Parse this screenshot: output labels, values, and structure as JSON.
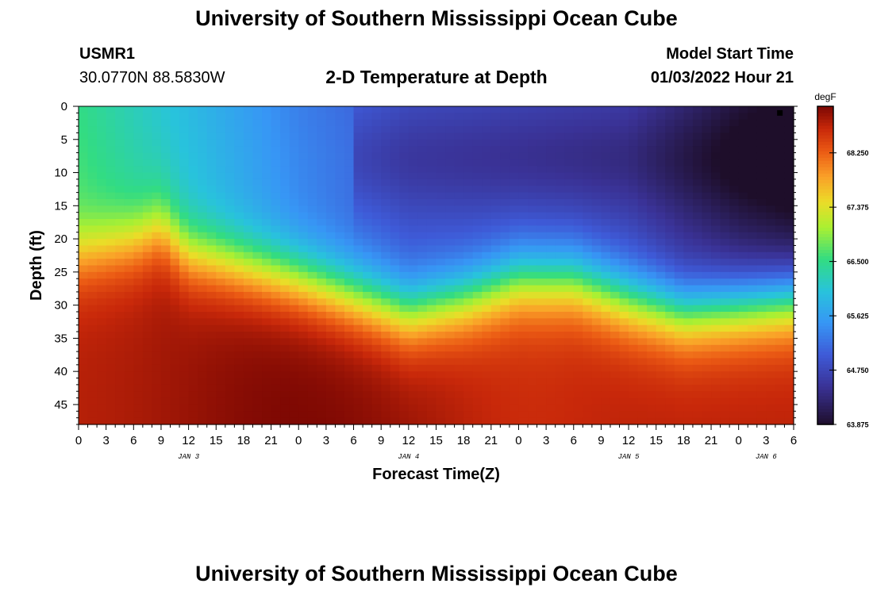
{
  "page": {
    "title": "University of Southern Mississippi Ocean Cube",
    "footer_title": "University of Southern Mississippi Ocean Cube",
    "station": "USMR1",
    "coords": "30.0770N  88.5830W",
    "plot_title": "2-D Temperature at Depth",
    "model_start_label": "Model Start Time",
    "model_start_value": "01/03/2022 Hour 21"
  },
  "chart_data": {
    "type": "heatmap",
    "title": "2-D Temperature at Depth",
    "xlabel": "Forecast Time(Z)",
    "ylabel": "Depth (ft)",
    "x_range_hours": [
      0,
      78
    ],
    "x_ticks": [
      "0",
      "3",
      "6",
      "9",
      "12",
      "15",
      "18",
      "21",
      "0",
      "3",
      "6",
      "9",
      "12",
      "15",
      "18",
      "21",
      "0",
      "3",
      "6",
      "9",
      "12",
      "15",
      "18",
      "21",
      "0",
      "3",
      "6"
    ],
    "day_labels": [
      {
        "label": "JAN 3",
        "hour": 12
      },
      {
        "label": "JAN 4",
        "hour": 36
      },
      {
        "label": "JAN 5",
        "hour": 60
      },
      {
        "label": "JAN 6",
        "hour": 75
      }
    ],
    "ylim_ft": [
      0,
      48
    ],
    "y_ticks": [
      "0",
      "5",
      "10",
      "15",
      "20",
      "25",
      "30",
      "35",
      "40",
      "45"
    ],
    "y_tick_values": [
      0,
      5,
      10,
      15,
      20,
      25,
      30,
      35,
      40,
      45
    ],
    "colorbar": {
      "unit": "degF",
      "min": 63.875,
      "max": 69.0,
      "tick_labels": [
        "68.250",
        "67.375",
        "66.500",
        "65.625",
        "64.750",
        "63.875"
      ],
      "tick_values": [
        68.25,
        67.375,
        66.5,
        65.625,
        64.75,
        63.875
      ]
    },
    "surface_temp_degF": [
      {
        "hour": 0,
        "value": 66.5
      },
      {
        "hour": 12,
        "value": 65.9
      },
      {
        "hour": 24,
        "value": 65.3
      },
      {
        "hour": 36,
        "value": 64.9
      },
      {
        "hour": 48,
        "value": 64.8
      },
      {
        "hour": 60,
        "value": 64.7
      },
      {
        "hour": 72,
        "value": 64.1
      },
      {
        "hour": 78,
        "value": 63.9
      }
    ],
    "thermocline_depth_ft": [
      {
        "hour": 0,
        "value": 22
      },
      {
        "hour": 6,
        "value": 20
      },
      {
        "hour": 9,
        "value": 18
      },
      {
        "hour": 12,
        "value": 22
      },
      {
        "hour": 24,
        "value": 26
      },
      {
        "hour": 36,
        "value": 31
      },
      {
        "hour": 42,
        "value": 29
      },
      {
        "hour": 48,
        "value": 26
      },
      {
        "hour": 54,
        "value": 26
      },
      {
        "hour": 60,
        "value": 29
      },
      {
        "hour": 66,
        "value": 31
      },
      {
        "hour": 72,
        "value": 30
      },
      {
        "hour": 78,
        "value": 29
      }
    ],
    "marker": {
      "hour": 76.5,
      "depth_ft": 1
    }
  }
}
